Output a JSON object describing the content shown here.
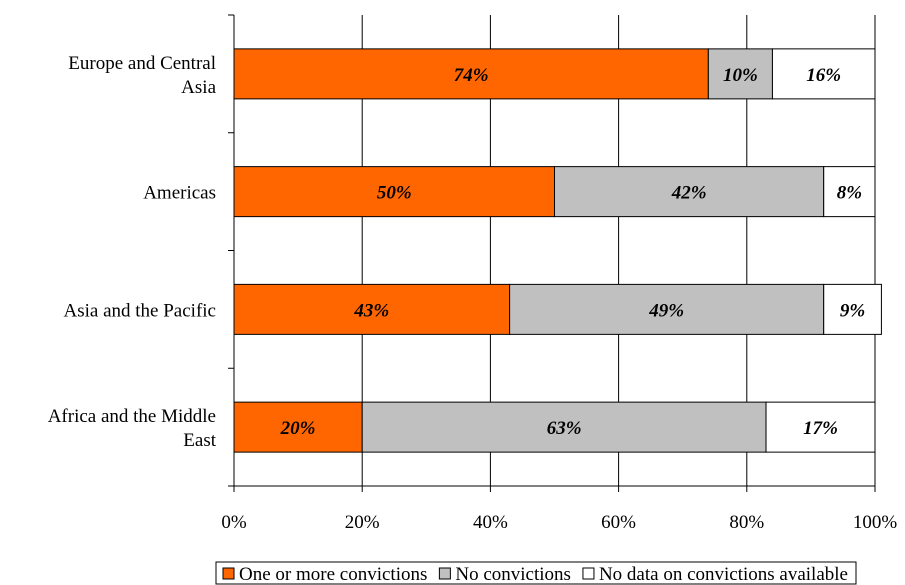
{
  "chart_data": {
    "type": "bar",
    "orientation": "horizontal",
    "stacked": true,
    "title": "",
    "xlabel": "",
    "ylabel": "",
    "xlim": [
      0,
      100
    ],
    "x_ticks": [
      "0%",
      "20%",
      "40%",
      "60%",
      "80%",
      "100%"
    ],
    "grid": true,
    "legend_position": "bottom",
    "categories": [
      [
        "Europe and Central",
        "Asia"
      ],
      [
        "Americas"
      ],
      [
        "Asia and the Pacific"
      ],
      [
        "Africa and the Middle",
        "East"
      ]
    ],
    "series": [
      {
        "name": "One or more convictions",
        "color": "#ff6600",
        "values": [
          74,
          50,
          43,
          20
        ],
        "labels": [
          "74%",
          "50%",
          "43%",
          "20%"
        ]
      },
      {
        "name": "No convictions",
        "color": "#c0c0c0",
        "values": [
          10,
          42,
          49,
          63
        ],
        "labels": [
          "10%",
          "42%",
          "49%",
          "63%"
        ]
      },
      {
        "name": "No data on convictions available",
        "color": "#ffffff",
        "values": [
          16,
          8,
          9,
          17
        ],
        "labels": [
          "16%",
          "8%",
          "9%",
          "17%"
        ]
      }
    ]
  }
}
